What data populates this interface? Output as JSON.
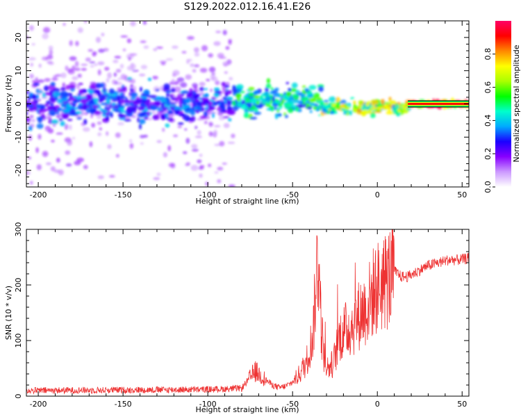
{
  "figure": {
    "title": "S129.2022.012.16.41.E26"
  },
  "colorbar": {
    "label": "Normalized spectral amplitude",
    "ticks": [
      "0.0",
      "0.2",
      "0.4",
      "0.6",
      "0.8"
    ],
    "tick_values": [
      0.0,
      0.2,
      0.4,
      0.6,
      0.8
    ],
    "colors": [
      "#ffffff",
      "#cc99ff",
      "#8800ff",
      "#1a00ff",
      "#00aaff",
      "#00ffcc",
      "#00ff00",
      "#aaff00",
      "#ffff00",
      "#ff8800",
      "#ff0000",
      "#ff0066"
    ]
  },
  "chart_data": [
    {
      "type": "heatmap",
      "title": "S129.2022.012.16.41.E26",
      "xlabel": "Height of straight line (km)",
      "ylabel": "Frequency (Hz)",
      "xlim": [
        -207,
        54
      ],
      "ylim": [
        -25,
        25
      ],
      "x_ticks": [
        "-200",
        "-150",
        "-100",
        "-50",
        "0",
        "50"
      ],
      "x_tick_values": [
        -200,
        -150,
        -100,
        -50,
        0,
        50
      ],
      "y_ticks": [
        "-20",
        "-10",
        "0",
        "10",
        "20"
      ],
      "y_tick_values": [
        -20,
        -10,
        0,
        10,
        20
      ],
      "colorbar_range": [
        0,
        1
      ],
      "description_of_values": [
        {
          "x_range": [
            -207,
            -85
          ],
          "freq_center": 0,
          "freq_spread": 25,
          "amplitude": 0.15
        },
        {
          "x_range": [
            -207,
            -85
          ],
          "freq_center": 0,
          "freq_spread": 6,
          "amplitude": 0.3
        },
        {
          "x_range": [
            -85,
            -33
          ],
          "freq_center": 1,
          "freq_spread": 5,
          "amplitude": 0.45
        },
        {
          "x_range": [
            -33,
            18
          ],
          "freq_center": -1,
          "freq_spread": 2,
          "amplitude": 0.6
        },
        {
          "x_range": [
            18,
            54
          ],
          "freq_center": 0,
          "freq_spread": 1,
          "amplitude": 0.9
        }
      ]
    },
    {
      "type": "line",
      "xlabel": "Height of straight line (km)",
      "ylabel": "SNR (10 * v/v)",
      "xlim": [
        -207,
        54
      ],
      "ylim": [
        0,
        300
      ],
      "x_ticks": [
        "-200",
        "-150",
        "-100",
        "-50",
        "0",
        "50"
      ],
      "x_tick_values": [
        -200,
        -150,
        -100,
        -50,
        0,
        50
      ],
      "y_ticks": [
        "0",
        "100",
        "200",
        "300"
      ],
      "y_tick_values": [
        0,
        100,
        200,
        300
      ],
      "color": "#ee3333",
      "series": [
        {
          "x": [
            -207,
            -150,
            -100,
            -80,
            -76,
            -72,
            -68,
            -62,
            -58,
            -54,
            -50,
            -46,
            -42,
            -38,
            -35,
            -33,
            -31,
            -29,
            -26,
            -22,
            -18,
            -14,
            -10,
            -6,
            -2,
            2,
            6,
            10,
            14,
            18,
            24,
            30,
            36,
            42,
            48,
            54
          ],
          "values": [
            10,
            11,
            12,
            14,
            30,
            45,
            35,
            20,
            15,
            18,
            25,
            40,
            60,
            110,
            260,
            120,
            60,
            50,
            60,
            110,
            120,
            130,
            150,
            160,
            190,
            200,
            210,
            225,
            215,
            215,
            225,
            235,
            240,
            245,
            245,
            248
          ]
        }
      ]
    }
  ]
}
